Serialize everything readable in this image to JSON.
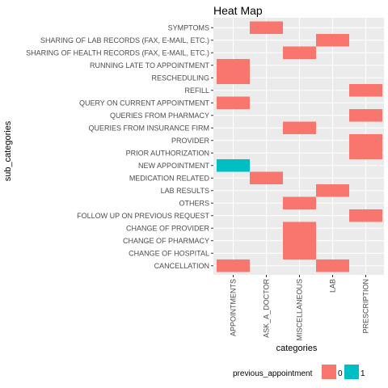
{
  "chart_data": {
    "type": "heatmap",
    "title": "Heat Map",
    "xlabel": "categories",
    "ylabel": "sub_categories",
    "grid": true,
    "legend_position": "bottom",
    "x_categories": [
      "APPOINTMENTS",
      "ASK_A_DOCTOR",
      "MISCELLANEOUS",
      "LAB",
      "PRESCRIPTION"
    ],
    "y_categories": [
      "SYMPTOMS",
      "SHARING OF LAB RECORDS (FAX, E-MAIL, ETC.)",
      "SHARING OF HEALTH RECORDS (FAX, E-MAIL, ETC.)",
      "RUNNING LATE TO APPOINTMENT",
      "RESCHEDULING",
      "REFILL",
      "QUERY ON CURRENT APPOINTMENT",
      "QUERIES FROM PHARMACY",
      "QUERIES FROM INSURANCE FIRM",
      "PROVIDER",
      "PRIOR AUTHORIZATION",
      "NEW APPOINTMENT",
      "MEDICATION RELATED",
      "LAB RESULTS",
      "OTHERS",
      "FOLLOW UP ON PREVIOUS REQUEST",
      "CHANGE OF PROVIDER",
      "CHANGE OF PHARMACY",
      "CHANGE OF HOSPITAL",
      "CANCELLATION"
    ],
    "legend": {
      "title": "previous_appointment",
      "entries": [
        {
          "label": "0",
          "color": "#f8766d"
        },
        {
          "label": "1",
          "color": "#00bfc4"
        }
      ]
    },
    "cells": [
      {
        "x": "ASK_A_DOCTOR",
        "y": "SYMPTOMS",
        "value": 0
      },
      {
        "x": "LAB",
        "y": "SHARING OF LAB RECORDS (FAX, E-MAIL, ETC.)",
        "value": 0
      },
      {
        "x": "MISCELLANEOUS",
        "y": "SHARING OF HEALTH RECORDS (FAX, E-MAIL, ETC.)",
        "value": 0
      },
      {
        "x": "APPOINTMENTS",
        "y": "RUNNING LATE TO APPOINTMENT",
        "value": 0
      },
      {
        "x": "APPOINTMENTS",
        "y": "RESCHEDULING",
        "value": 0
      },
      {
        "x": "PRESCRIPTION",
        "y": "REFILL",
        "value": 0
      },
      {
        "x": "APPOINTMENTS",
        "y": "QUERY ON CURRENT APPOINTMENT",
        "value": 0
      },
      {
        "x": "PRESCRIPTION",
        "y": "QUERIES FROM PHARMACY",
        "value": 0
      },
      {
        "x": "MISCELLANEOUS",
        "y": "QUERIES FROM INSURANCE FIRM",
        "value": 0
      },
      {
        "x": "PRESCRIPTION",
        "y": "PROVIDER",
        "value": 0
      },
      {
        "x": "PRESCRIPTION",
        "y": "PRIOR AUTHORIZATION",
        "value": 0
      },
      {
        "x": "APPOINTMENTS",
        "y": "NEW APPOINTMENT",
        "value": 1
      },
      {
        "x": "ASK_A_DOCTOR",
        "y": "MEDICATION RELATED",
        "value": 0
      },
      {
        "x": "LAB",
        "y": "LAB RESULTS",
        "value": 0
      },
      {
        "x": "MISCELLANEOUS",
        "y": "OTHERS",
        "value": 0
      },
      {
        "x": "PRESCRIPTION",
        "y": "FOLLOW UP ON PREVIOUS REQUEST",
        "value": 0
      },
      {
        "x": "MISCELLANEOUS",
        "y": "CHANGE OF PROVIDER",
        "value": 0
      },
      {
        "x": "MISCELLANEOUS",
        "y": "CHANGE OF PHARMACY",
        "value": 0
      },
      {
        "x": "MISCELLANEOUS",
        "y": "CHANGE OF HOSPITAL",
        "value": 0
      },
      {
        "x": "APPOINTMENTS",
        "y": "CANCELLATION",
        "value": 0
      },
      {
        "x": "LAB",
        "y": "CANCELLATION",
        "value": 0
      }
    ]
  }
}
